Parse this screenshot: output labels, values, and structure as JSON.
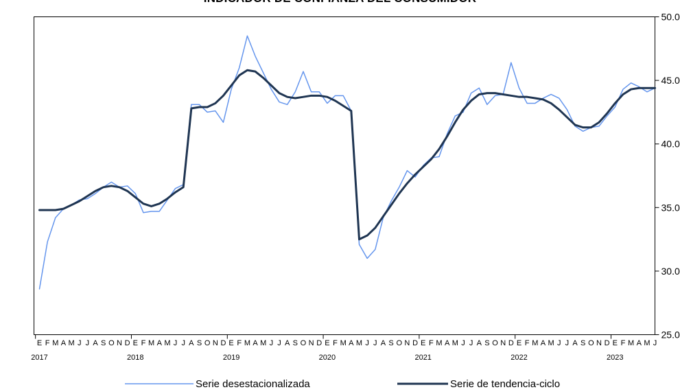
{
  "chart_data": {
    "type": "line",
    "title": "INDICADOR DE CONFIANZA DEL CONSUMIDOR",
    "xlabel": "",
    "ylabel": "",
    "ylim": [
      25.0,
      50.0
    ],
    "y_ticks": [
      "25.0",
      "30.0",
      "35.0",
      "40.0",
      "45.0",
      "50.0"
    ],
    "month_letters": [
      "E",
      "F",
      "M",
      "A",
      "M",
      "J",
      "J",
      "A",
      "S",
      "O",
      "N",
      "D"
    ],
    "years": [
      "2017",
      "2018",
      "2019",
      "2020",
      "2021",
      "2022",
      "2023"
    ],
    "x_range": [
      "2017-01",
      "2023-05"
    ],
    "grid": false,
    "legend_position": "bottom",
    "series": [
      {
        "name": "Serie desestacionalizada",
        "color": "#6495ED",
        "values": [
          28.6,
          32.3,
          34.2,
          34.9,
          35.2,
          35.6,
          35.7,
          36.1,
          36.6,
          37.0,
          36.6,
          36.7,
          36.1,
          34.6,
          34.7,
          34.7,
          35.6,
          36.5,
          36.8,
          43.1,
          43.1,
          42.5,
          42.6,
          41.7,
          44.3,
          46.0,
          48.5,
          46.9,
          45.6,
          44.3,
          43.3,
          43.1,
          44.1,
          45.7,
          44.1,
          44.1,
          43.2,
          43.8,
          43.8,
          42.6,
          32.1,
          31.0,
          31.7,
          34.2,
          35.5,
          36.6,
          37.9,
          37.4,
          38.3,
          38.9,
          39.0,
          40.8,
          42.2,
          42.5,
          44.0,
          44.4,
          43.1,
          43.8,
          43.9,
          46.4,
          44.4,
          43.2,
          43.2,
          43.6,
          43.9,
          43.6,
          42.7,
          41.4,
          41.0,
          41.3,
          41.4,
          42.2,
          42.9,
          44.3,
          44.8,
          44.5,
          44.1,
          44.4
        ]
      },
      {
        "name": "Serie de tendencia-ciclo",
        "color": "#1F3552",
        "values": [
          34.8,
          34.8,
          34.8,
          34.9,
          35.2,
          35.5,
          35.9,
          36.3,
          36.6,
          36.7,
          36.6,
          36.3,
          35.8,
          35.3,
          35.1,
          35.3,
          35.7,
          36.2,
          36.6,
          42.8,
          42.9,
          42.9,
          43.2,
          43.8,
          44.6,
          45.4,
          45.8,
          45.7,
          45.2,
          44.6,
          44.0,
          43.7,
          43.6,
          43.7,
          43.8,
          43.8,
          43.7,
          43.4,
          43.0,
          42.6,
          32.5,
          32.8,
          33.4,
          34.3,
          35.2,
          36.1,
          36.9,
          37.6,
          38.2,
          38.8,
          39.6,
          40.6,
          41.7,
          42.7,
          43.4,
          43.9,
          44.0,
          44.0,
          43.9,
          43.8,
          43.7,
          43.7,
          43.6,
          43.5,
          43.2,
          42.7,
          42.1,
          41.5,
          41.3,
          41.3,
          41.7,
          42.4,
          43.2,
          43.9,
          44.3,
          44.4,
          44.4,
          44.4
        ]
      }
    ]
  }
}
